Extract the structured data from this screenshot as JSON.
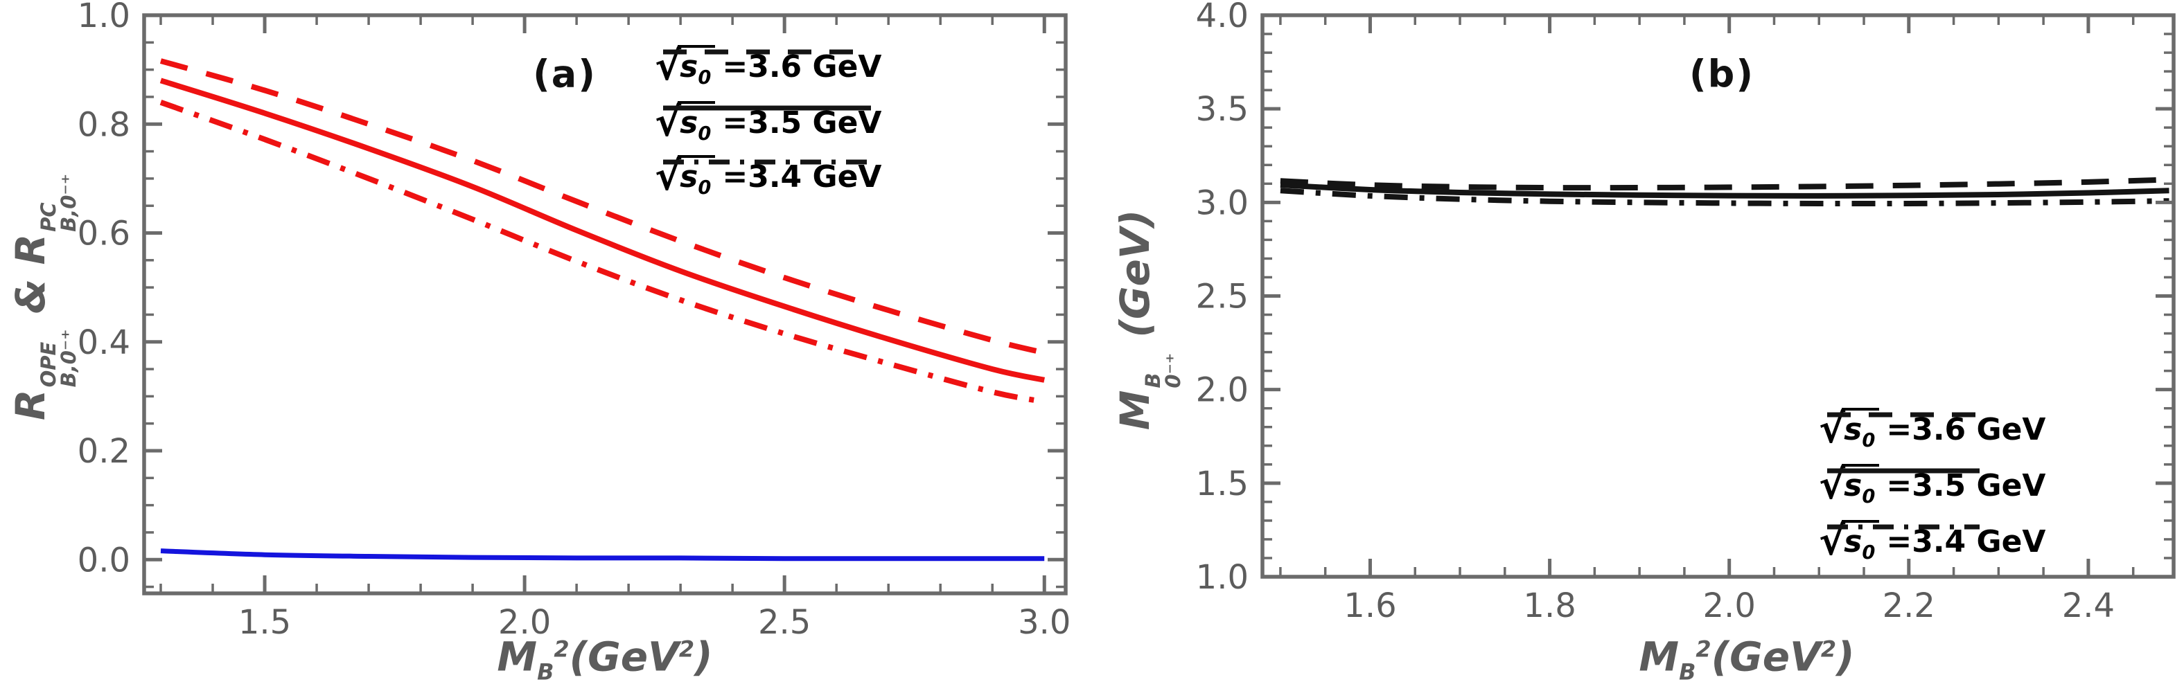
{
  "colors": {
    "red": "#ee1212",
    "blue": "#1414dd",
    "black": "#141414",
    "frame_gray": "#6b6b6b",
    "text_gray": "#5c5c5c",
    "background": "#ffffff"
  },
  "chart_data": [
    {
      "type": "line",
      "tag": "(a)",
      "xlabel_segments": [
        [
          "t",
          "M"
        ],
        [
          "sub",
          "B"
        ],
        [
          "sup",
          "2"
        ],
        [
          "t",
          "(GeV"
        ],
        [
          "sup",
          "2"
        ],
        [
          "t",
          ")"
        ]
      ],
      "ylabel_segments": [
        [
          "t",
          "R"
        ],
        [
          "stack",
          "OPE",
          "B,0⁻⁺"
        ],
        [
          "t",
          " & "
        ],
        [
          "t",
          "R"
        ],
        [
          "stack",
          "PC",
          "B,0⁻⁺"
        ]
      ],
      "xlim": [
        1.268,
        3.041
      ],
      "ylim": [
        -0.062,
        1.0
      ],
      "xticks": {
        "minor_step": 0.1,
        "major": [
          {
            "v": 1.5,
            "t": "1.5"
          },
          {
            "v": 2.0,
            "t": "2.0"
          },
          {
            "v": 2.5,
            "t": "2.5"
          },
          {
            "v": 3.0,
            "t": "3.0"
          }
        ]
      },
      "yticks": {
        "minor_step": 0.05,
        "major": [
          {
            "v": 0.0,
            "t": "0.0"
          },
          {
            "v": 0.2,
            "t": "0.2"
          },
          {
            "v": 0.4,
            "t": "0.4"
          },
          {
            "v": 0.6,
            "t": "0.6"
          },
          {
            "v": 0.8,
            "t": "0.8"
          },
          {
            "v": 1.0,
            "t": "1.0"
          }
        ]
      },
      "legend": {
        "prefix": "√",
        "arg": "s",
        "arg_sub": "0",
        "entries": [
          {
            "value": "=3.6 GeV",
            "dash": "dashed"
          },
          {
            "value": "=3.5 GeV",
            "dash": "solid"
          },
          {
            "value": "=3.4 GeV",
            "dash": "dashdot"
          }
        ]
      },
      "series": [
        {
          "name": "R_OPE_sqrt_s0_3.6GeV",
          "color": "red",
          "dash": "dashed",
          "x": [
            1.3,
            1.5,
            1.7,
            1.9,
            2.1,
            2.3,
            2.5,
            2.7,
            2.9,
            3.0
          ],
          "y": [
            0.916,
            0.862,
            0.8,
            0.733,
            0.658,
            0.585,
            0.518,
            0.458,
            0.403,
            0.38
          ]
        },
        {
          "name": "R_OPE_sqrt_s0_3.5GeV",
          "color": "red",
          "dash": "solid",
          "x": [
            1.3,
            1.5,
            1.7,
            1.9,
            2.1,
            2.3,
            2.5,
            2.7,
            2.9,
            3.0
          ],
          "y": [
            0.88,
            0.82,
            0.755,
            0.685,
            0.605,
            0.53,
            0.465,
            0.405,
            0.35,
            0.33
          ]
        },
        {
          "name": "R_OPE_sqrt_s0_3.4GeV",
          "color": "red",
          "dash": "dashdot",
          "x": [
            1.3,
            1.5,
            1.7,
            1.9,
            2.1,
            2.3,
            2.5,
            2.7,
            2.9,
            3.0
          ],
          "y": [
            0.84,
            0.772,
            0.7,
            0.625,
            0.548,
            0.477,
            0.415,
            0.36,
            0.308,
            0.29
          ]
        },
        {
          "name": "R_PC",
          "color": "blue",
          "dash": "solid",
          "x": [
            1.3,
            1.5,
            1.7,
            1.9,
            2.1,
            2.3,
            2.5,
            2.7,
            2.9,
            3.0
          ],
          "y": [
            0.016,
            0.009,
            0.006,
            0.004,
            0.003,
            0.003,
            0.002,
            0.002,
            0.002,
            0.002
          ]
        }
      ]
    },
    {
      "type": "line",
      "tag": "(b)",
      "xlabel_segments": [
        [
          "t",
          "M"
        ],
        [
          "sub",
          "B"
        ],
        [
          "sup",
          "2"
        ],
        [
          "t",
          "(GeV"
        ],
        [
          "sup",
          "2"
        ],
        [
          "t",
          ")"
        ]
      ],
      "ylabel_segments": [
        [
          "t",
          "M"
        ],
        [
          "stack",
          "B",
          "0⁻⁺"
        ],
        [
          "t",
          " (GeV)"
        ]
      ],
      "xlim": [
        1.48,
        2.495
      ],
      "ylim": [
        1.0,
        4.0
      ],
      "xticks": {
        "minor_step": 0.05,
        "major": [
          {
            "v": 1.6,
            "t": "1.6"
          },
          {
            "v": 1.8,
            "t": "1.8"
          },
          {
            "v": 2.0,
            "t": "2.0"
          },
          {
            "v": 2.2,
            "t": "2.2"
          },
          {
            "v": 2.4,
            "t": "2.4"
          }
        ]
      },
      "yticks": {
        "minor_step": 0.1,
        "major": [
          {
            "v": 1.0,
            "t": "1.0"
          },
          {
            "v": 1.5,
            "t": "1.5"
          },
          {
            "v": 2.0,
            "t": "2.0"
          },
          {
            "v": 2.5,
            "t": "2.5"
          },
          {
            "v": 3.0,
            "t": "3.0"
          },
          {
            "v": 3.5,
            "t": "3.5"
          },
          {
            "v": 4.0,
            "t": "4.0"
          }
        ]
      },
      "legend": {
        "prefix": "√",
        "arg": "s",
        "arg_sub": "0",
        "entries": [
          {
            "value": "=3.6 GeV",
            "dash": "dashed"
          },
          {
            "value": "=3.5 GeV",
            "dash": "solid"
          },
          {
            "value": "=3.4 GeV",
            "dash": "dashdot"
          }
        ]
      },
      "series": [
        {
          "name": "M_sqrt_s0_3.6GeV",
          "color": "black",
          "dash": "dashed",
          "x": [
            1.5,
            1.6,
            1.7,
            1.8,
            1.9,
            2.0,
            2.1,
            2.2,
            2.3,
            2.4,
            2.49
          ],
          "y": [
            3.115,
            3.093,
            3.083,
            3.079,
            3.079,
            3.081,
            3.085,
            3.091,
            3.099,
            3.109,
            3.122
          ]
        },
        {
          "name": "M_sqrt_s0_3.5GeV",
          "color": "black",
          "dash": "solid",
          "x": [
            1.5,
            1.6,
            1.7,
            1.8,
            1.9,
            2.0,
            2.1,
            2.2,
            2.3,
            2.4,
            2.49
          ],
          "y": [
            3.093,
            3.068,
            3.053,
            3.044,
            3.039,
            3.036,
            3.035,
            3.037,
            3.042,
            3.051,
            3.063
          ]
        },
        {
          "name": "M_sqrt_s0_3.4GeV",
          "color": "black",
          "dash": "dashdot",
          "x": [
            1.5,
            1.6,
            1.7,
            1.8,
            1.9,
            2.0,
            2.1,
            2.2,
            2.3,
            2.4,
            2.49
          ],
          "y": [
            3.063,
            3.035,
            3.017,
            3.006,
            3.0,
            2.996,
            2.994,
            2.994,
            2.997,
            3.002,
            3.008
          ]
        }
      ]
    }
  ]
}
